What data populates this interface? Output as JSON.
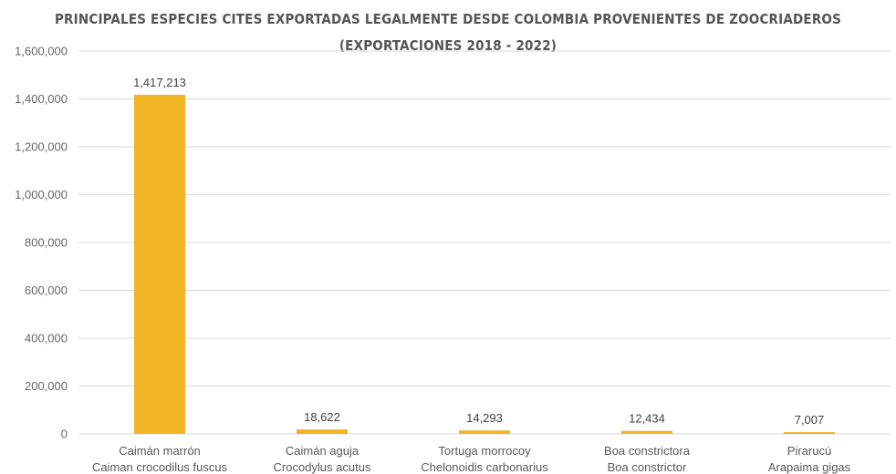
{
  "chart_data": {
    "type": "bar",
    "title": "PRINCIPALES ESPECIES CITES EXPORTADAS LEGALMENTE DESDE COLOMBIA PROVENIENTES DE ZOOCRIADEROS",
    "subtitle": "(EXPORTACIONES 2018 - 2022)",
    "categories": [
      [
        "Caimán marrón",
        "Caiman crocodilus fuscus"
      ],
      [
        "Caimán aguja",
        "Crocodylus acutus"
      ],
      [
        "Tortuga morrocoy",
        "Chelonoidis carbonarius"
      ],
      [
        "Boa constrictora",
        "Boa constrictor"
      ],
      [
        "Pirarucú",
        "Arapaima gigas"
      ]
    ],
    "values": [
      1417213,
      18622,
      14293,
      12434,
      7007
    ],
    "data_labels": [
      "1,417,213",
      "18,622",
      "14,293",
      "12,434",
      "7,007"
    ],
    "ylim": [
      0,
      1600000
    ],
    "yticks": [
      0,
      200000,
      400000,
      600000,
      800000,
      1000000,
      1200000,
      1400000,
      1600000
    ],
    "ytick_labels": [
      "0",
      "200,000",
      "400,000",
      "600,000",
      "800,000",
      "1,000,000",
      "1,200,000",
      "1,400,000",
      "1,600,000"
    ],
    "grid": true,
    "xlabel": "",
    "ylabel": "",
    "colors": {
      "bar": "#F0B323",
      "grid": "#D9D9D9",
      "title": "#555555"
    }
  }
}
